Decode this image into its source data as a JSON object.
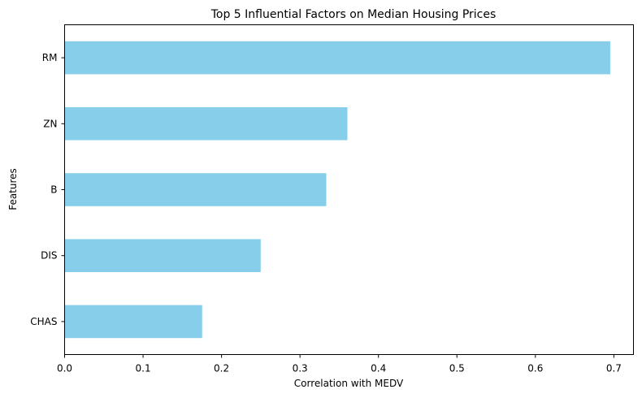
{
  "chart_data": {
    "type": "bar",
    "orientation": "horizontal",
    "title": "Top 5 Influential Factors on Median Housing Prices",
    "xlabel": "Correlation with MEDV",
    "ylabel": "Features",
    "categories": [
      "RM",
      "ZN",
      "B",
      "DIS",
      "CHAS"
    ],
    "values": [
      0.6954,
      0.3604,
      0.3335,
      0.2499,
      0.1753
    ],
    "xlim": [
      0,
      0.725
    ],
    "xticks": [
      0,
      0.1,
      0.2,
      0.3,
      0.4,
      0.5,
      0.6,
      0.7
    ],
    "xtick_labels": [
      "0.0",
      "0.1",
      "0.2",
      "0.3",
      "0.4",
      "0.5",
      "0.6",
      "0.7"
    ],
    "grid": false,
    "legend": "none",
    "bar_color": "#87ceeb"
  }
}
